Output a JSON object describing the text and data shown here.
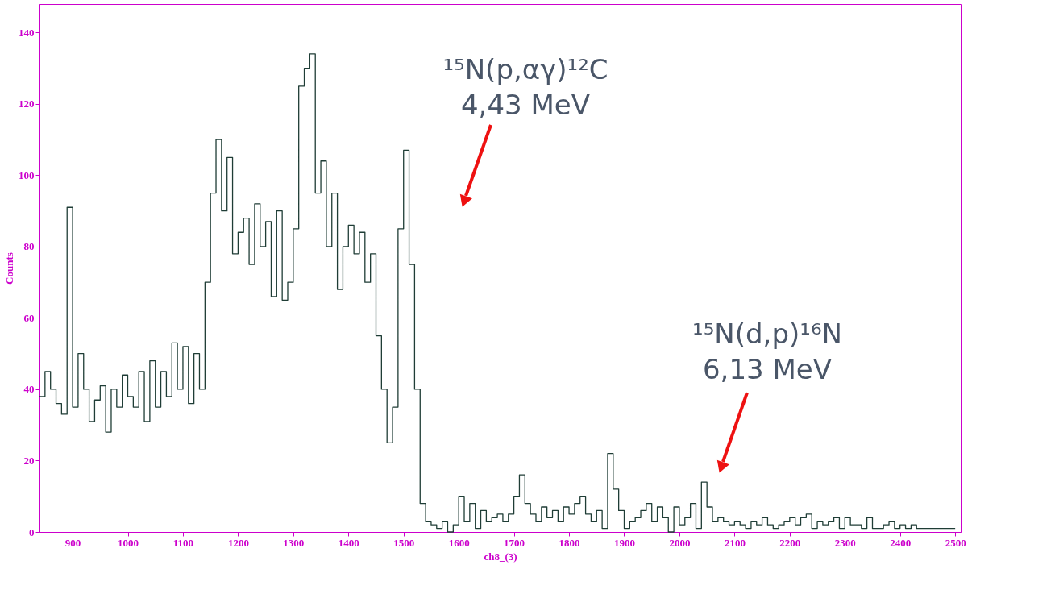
{
  "chart_data": {
    "type": "histogram",
    "xlabel": "ch8_(3)",
    "ylabel": "Counts",
    "color": "#1f3d36",
    "bins": [
      840,
      850,
      860,
      870,
      880,
      890,
      900,
      910,
      920,
      930,
      940,
      950,
      960,
      970,
      980,
      990,
      1000,
      1010,
      1020,
      1030,
      1040,
      1050,
      1060,
      1070,
      1080,
      1090,
      1100,
      1110,
      1120,
      1130,
      1140,
      1150,
      1160,
      1170,
      1180,
      1190,
      1200,
      1210,
      1220,
      1230,
      1240,
      1250,
      1260,
      1270,
      1280,
      1290,
      1300,
      1310,
      1320,
      1330,
      1340,
      1350,
      1360,
      1370,
      1380,
      1390,
      1400,
      1410,
      1420,
      1430,
      1440,
      1450,
      1460,
      1470,
      1480,
      1490,
      1500,
      1510,
      1520,
      1530,
      1540,
      1550,
      1560,
      1570,
      1580,
      1590,
      1600,
      1610,
      1620,
      1630,
      1640,
      1650,
      1660,
      1670,
      1680,
      1690,
      1700,
      1710,
      1720,
      1730,
      1740,
      1750,
      1760,
      1770,
      1780,
      1790,
      1800,
      1810,
      1820,
      1830,
      1840,
      1850,
      1860,
      1870,
      1880,
      1890,
      1900,
      1910,
      1920,
      1930,
      1940,
      1950,
      1960,
      1970,
      1980,
      1990,
      2000,
      2010,
      2020,
      2030,
      2040,
      2050,
      2060,
      2070,
      2080,
      2090,
      2100,
      2110,
      2120,
      2130,
      2140,
      2150,
      2160,
      2170,
      2180,
      2190,
      2200,
      2210,
      2220,
      2230,
      2240,
      2250,
      2260,
      2270,
      2280,
      2290,
      2300,
      2310,
      2320,
      2330,
      2340,
      2350,
      2360,
      2370,
      2380,
      2390,
      2400,
      2410,
      2420,
      2430,
      2440,
      2450,
      2460,
      2470,
      2480,
      2490,
      2500
    ],
    "values": [
      38,
      45,
      40,
      36,
      33,
      91,
      35,
      50,
      40,
      31,
      37,
      41,
      28,
      40,
      35,
      44,
      38,
      35,
      45,
      31,
      48,
      35,
      45,
      38,
      53,
      40,
      52,
      36,
      50,
      40,
      70,
      95,
      110,
      90,
      105,
      78,
      84,
      88,
      75,
      92,
      80,
      87,
      66,
      90,
      65,
      70,
      85,
      125,
      130,
      134,
      95,
      104,
      80,
      95,
      68,
      80,
      86,
      78,
      84,
      70,
      78,
      55,
      40,
      25,
      35,
      85,
      107,
      75,
      40,
      8,
      3,
      2,
      1,
      3,
      0,
      2,
      10,
      3,
      8,
      1,
      6,
      3,
      4,
      5,
      3,
      5,
      10,
      16,
      8,
      5,
      3,
      7,
      4,
      6,
      3,
      7,
      5,
      8,
      10,
      5,
      3,
      6,
      1,
      22,
      12,
      6,
      1,
      3,
      4,
      6,
      8,
      3,
      7,
      4,
      0,
      7,
      2,
      4,
      8,
      1,
      14,
      7,
      3,
      4,
      3,
      2,
      3,
      2,
      1,
      3,
      2,
      4,
      2,
      1,
      2,
      3,
      4,
      2,
      4,
      5,
      1,
      3,
      2,
      3,
      4,
      1,
      4,
      2,
      2,
      1,
      4,
      1,
      1,
      2,
      3,
      1,
      2,
      1,
      2,
      1,
      1,
      1,
      1,
      1,
      1,
      1
    ],
    "xlim": [
      840,
      2510
    ],
    "ylim": [
      0,
      148
    ],
    "xticks": [
      900,
      1000,
      1100,
      1200,
      1300,
      1400,
      1500,
      1600,
      1700,
      1800,
      1900,
      2000,
      2100,
      2200,
      2300,
      2400,
      2500
    ],
    "yticks": [
      0,
      20,
      40,
      60,
      80,
      100,
      120,
      140
    ],
    "grid": false,
    "annotations": [
      "¹⁵N(p,αγ)¹²C\n4,43 MeV",
      "¹⁵N(d,p)¹⁶N\n6,13 MeV"
    ]
  }
}
